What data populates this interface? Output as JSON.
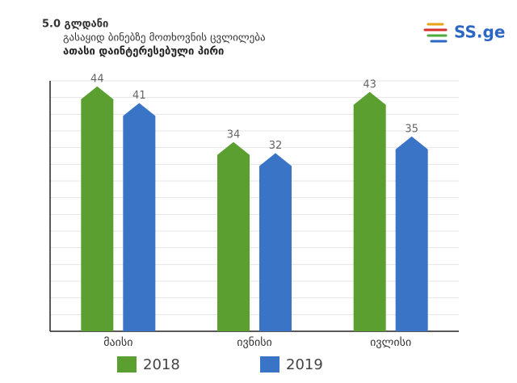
{
  "chart_data": {
    "type": "bar",
    "title": "5.0 გლდანი",
    "subtitle": "გასაყიდ ბინებზე მოთხოვნის ცვლილება",
    "unit_label": "ათასი დაინტერესებული პირი",
    "logo": "SS.ge",
    "categories": [
      "მაისი",
      "ივნისი",
      "ივლისი"
    ],
    "series": [
      {
        "name": "2018",
        "color": "#5a9f2f",
        "values": [
          44,
          34,
          43
        ]
      },
      {
        "name": "2019",
        "color": "#3a74c6",
        "values": [
          41,
          32,
          35
        ]
      }
    ],
    "ylim": [
      0,
      45
    ],
    "yticks": [
      0,
      3,
      6,
      9,
      12,
      15,
      18,
      21,
      24,
      27,
      30,
      33,
      36,
      39,
      42,
      45
    ],
    "grid": true
  }
}
